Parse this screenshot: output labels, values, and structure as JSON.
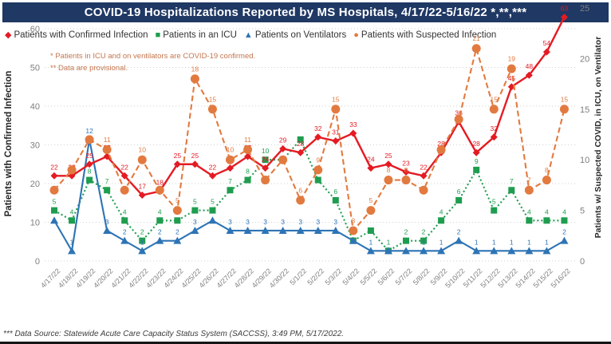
{
  "title": "COVID-19 Hospitalizations Reported by MS Hospitals, 4/17/22-5/16/22 *,**,***",
  "legend": [
    {
      "label": "Patients with Confirmed Infection",
      "marker": "diamond",
      "glyph": "◆",
      "color": "#e41b23"
    },
    {
      "label": "Patients in an ICU",
      "marker": "square",
      "glyph": "■",
      "color": "#1f9d4f"
    },
    {
      "label": "Patients on Ventilators",
      "marker": "triangle",
      "glyph": "▲",
      "color": "#2e74b5"
    },
    {
      "label": "Patients with Suspected Infection",
      "marker": "circle",
      "glyph": "●",
      "color": "#e27a40"
    }
  ],
  "notes": {
    "line1": "* Patients in ICU and on ventilators are COVID-19 confirmed.",
    "line2": "** Data are provisional."
  },
  "footer": "*** Data Source: Statewide Acute Care Capacity Status System (SACCSS), 3:49 PM, 5/17/2022.",
  "chart_data": {
    "type": "line",
    "x": [
      "4/17/22",
      "4/18/22",
      "4/19/22",
      "4/20/22",
      "4/21/22",
      "4/22/22",
      "4/23/22",
      "4/24/22",
      "4/25/22",
      "4/26/22",
      "4/27/22",
      "4/28/22",
      "4/29/22",
      "4/30/22",
      "5/1/22",
      "5/2/22",
      "5/3/22",
      "5/4/22",
      "5/5/22",
      "5/6/22",
      "5/7/22",
      "5/8/22",
      "5/9/22",
      "5/10/22",
      "5/11/22",
      "5/12/22",
      "5/13/22",
      "5/14/22",
      "5/15/22",
      "5/16/22"
    ],
    "left_axis": {
      "title": "Patients with Confirmed Infection",
      "min": 0,
      "max": 60,
      "ticks": [
        0,
        10,
        20,
        30,
        40,
        50,
        60
      ]
    },
    "right_axis": {
      "title": "Patients w/ Suspected COVID, in ICU, on Ventilator",
      "min": 0,
      "max": 25,
      "ticks": [
        0,
        5,
        10,
        15,
        20,
        25
      ]
    },
    "grid": "dotted-horizontal",
    "legend_position": "top",
    "series": [
      {
        "name": "Patients in an ICU",
        "axis": "right",
        "color": "#1f9d4f",
        "marker": "square",
        "dash": "2,3",
        "values": [
          5,
          4,
          8,
          7,
          4,
          2,
          4,
          4,
          5,
          5,
          7,
          8,
          10,
          10,
          12,
          8,
          6,
          2,
          3,
          1,
          2,
          2,
          4,
          6,
          9,
          5,
          7,
          4,
          4,
          4
        ],
        "labels": [
          5,
          4,
          8,
          7,
          4,
          2,
          4,
          4,
          5,
          5,
          7,
          8,
          10,
          null,
          null,
          8,
          6,
          2,
          null,
          1,
          2,
          2,
          4,
          6,
          9,
          5,
          7,
          4,
          4,
          4
        ]
      },
      {
        "name": "Patients on Ventilators",
        "axis": "right",
        "color": "#2e74b5",
        "marker": "triangle",
        "dash": null,
        "values": [
          4,
          1,
          12,
          3,
          2,
          1,
          2,
          2,
          3,
          4,
          3,
          3,
          3,
          3,
          3,
          3,
          3,
          2,
          1,
          1,
          1,
          1,
          1,
          2,
          1,
          1,
          1,
          1,
          1,
          2
        ],
        "labels": [
          null,
          1,
          12,
          3,
          2,
          1,
          2,
          2,
          3,
          null,
          3,
          3,
          3,
          3,
          3,
          3,
          3,
          null,
          1,
          null,
          null,
          1,
          1,
          2,
          1,
          1,
          1,
          1,
          1,
          2
        ]
      },
      {
        "name": "Patients with Confirmed Infection",
        "axis": "left",
        "color": "#e41b23",
        "marker": "diamond",
        "dash": null,
        "values": [
          22,
          22,
          25,
          27,
          22,
          17,
          18,
          25,
          25,
          22,
          24,
          27,
          24,
          29,
          28,
          32,
          31,
          33,
          24,
          25,
          23,
          22,
          28,
          36,
          28,
          32,
          45,
          48,
          54,
          63
        ],
        "labels": [
          22,
          22,
          25,
          27,
          22,
          17,
          18,
          25,
          25,
          22,
          null,
          27,
          24,
          29,
          28,
          32,
          31,
          33,
          24,
          25,
          23,
          22,
          28,
          36,
          28,
          32,
          45,
          48,
          54,
          63
        ]
      },
      {
        "name": "Patients with Suspected Infection",
        "axis": "right",
        "color": "#e27a40",
        "marker": "circle",
        "dash": "7,4",
        "values": [
          7,
          9,
          12,
          11,
          7,
          10,
          7,
          5,
          18,
          15,
          10,
          11,
          8,
          10,
          6,
          9,
          15,
          3,
          5,
          8,
          8,
          7,
          11,
          14,
          21,
          15,
          19,
          7,
          8,
          15
        ],
        "labels": [
          null,
          null,
          null,
          11,
          null,
          10,
          null,
          5,
          18,
          15,
          10,
          11,
          null,
          null,
          6,
          9,
          15,
          3,
          5,
          8,
          8,
          null,
          null,
          null,
          21,
          15,
          19,
          7,
          8,
          15
        ]
      }
    ]
  }
}
